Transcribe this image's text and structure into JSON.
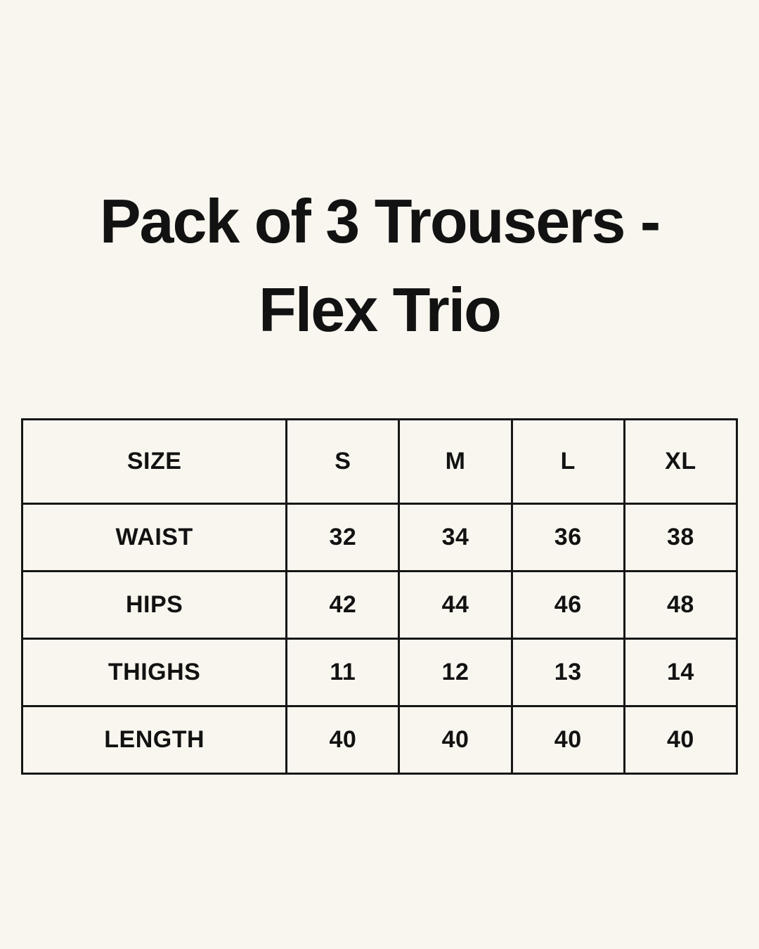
{
  "colors": {
    "background": "#F8F6EF",
    "text": "#121212",
    "table_border": "#161616"
  },
  "title": {
    "line1": "Pack of 3 Trousers -",
    "line2": "Flex Trio"
  },
  "size_table": {
    "header": [
      "SIZE",
      "S",
      "M",
      "L",
      "XL"
    ],
    "rows": [
      [
        "WAIST",
        "32",
        "34",
        "36",
        "38"
      ],
      [
        "HIPS",
        "42",
        "44",
        "46",
        "48"
      ],
      [
        "THIGHS",
        "11",
        "12",
        "13",
        "14"
      ],
      [
        "LENGTH",
        "40",
        "40",
        "40",
        "40"
      ]
    ]
  },
  "chart_data": {
    "type": "table",
    "title": "Pack of 3 Trousers - Flex Trio",
    "columns": [
      "SIZE",
      "S",
      "M",
      "L",
      "XL"
    ],
    "rows": [
      {
        "label": "WAIST",
        "values": [
          32,
          34,
          36,
          38
        ]
      },
      {
        "label": "HIPS",
        "values": [
          42,
          44,
          46,
          48
        ]
      },
      {
        "label": "THIGHS",
        "values": [
          11,
          12,
          13,
          14
        ]
      },
      {
        "label": "LENGTH",
        "values": [
          40,
          40,
          40,
          40
        ]
      }
    ],
    "layout": {
      "grid": true,
      "header_position": "top-row-and-left-column",
      "background": "#F8F6EF",
      "border_color": "#161616"
    }
  }
}
